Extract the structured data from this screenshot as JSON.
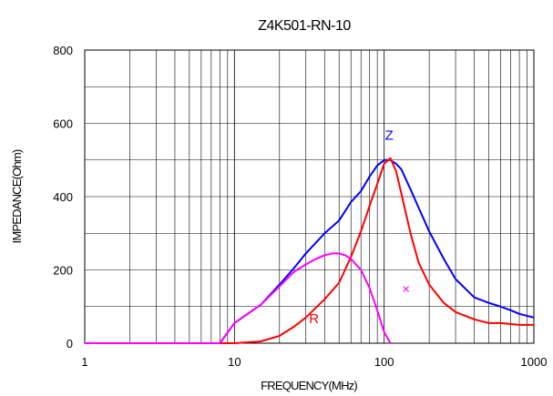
{
  "chart_data": {
    "type": "line",
    "title": "Z4K501-RN-10",
    "xlabel": "FREQUENCY(MHz)",
    "ylabel": "IMPEDANCE(Ohm)",
    "x_scale": "log",
    "xlim": [
      1,
      1000
    ],
    "ylim": [
      0,
      800
    ],
    "grid": true,
    "x_ticks": [
      "1",
      "10",
      "100",
      "1000"
    ],
    "y_ticks": [
      "0",
      "200",
      "400",
      "600",
      "800"
    ],
    "series": [
      {
        "name": "Z",
        "color": "#0000ff",
        "x": [
          1,
          2,
          3,
          4,
          5,
          6,
          8,
          10,
          15,
          20,
          25,
          30,
          40,
          50,
          60,
          70,
          80,
          90,
          100,
          110,
          120,
          130,
          150,
          170,
          200,
          250,
          300,
          400,
          500,
          600,
          700,
          800,
          1000
        ],
        "y": [
          0,
          0,
          0,
          0,
          0,
          0,
          0,
          55,
          105,
          160,
          205,
          245,
          300,
          335,
          385,
          415,
          455,
          485,
          500,
          500,
          490,
          475,
          420,
          370,
          305,
          230,
          175,
          125,
          110,
          100,
          90,
          80,
          70
        ]
      },
      {
        "name": "R",
        "color": "#ff0000",
        "x": [
          1,
          2,
          4,
          6,
          10,
          15,
          20,
          25,
          30,
          40,
          50,
          60,
          70,
          80,
          90,
          100,
          110,
          120,
          130,
          150,
          170,
          200,
          250,
          300,
          400,
          500,
          600,
          800,
          1000
        ],
        "y": [
          0,
          0,
          0,
          0,
          0,
          5,
          20,
          45,
          70,
          120,
          165,
          235,
          305,
          375,
          435,
          490,
          505,
          470,
          410,
          300,
          220,
          160,
          110,
          85,
          65,
          55,
          55,
          50,
          50
        ]
      },
      {
        "name": "X",
        "color": "#ff00ff",
        "x": [
          1,
          2,
          3,
          4,
          5,
          6,
          8,
          10,
          15,
          20,
          25,
          30,
          35,
          40,
          45,
          50,
          55,
          60,
          70,
          80,
          90,
          100,
          110
        ],
        "y": [
          0,
          0,
          0,
          0,
          0,
          0,
          0,
          55,
          105,
          155,
          195,
          215,
          230,
          240,
          245,
          245,
          240,
          230,
          200,
          150,
          90,
          30,
          0
        ]
      }
    ],
    "annotations": [
      {
        "text": "Z",
        "color": "#0000ff",
        "x": 108,
        "y": 555
      },
      {
        "text": "R",
        "color": "#ff0000",
        "x": 34,
        "y": 55
      },
      {
        "text": "×",
        "color": "#ff00ff",
        "x": 140,
        "y": 135
      }
    ]
  }
}
